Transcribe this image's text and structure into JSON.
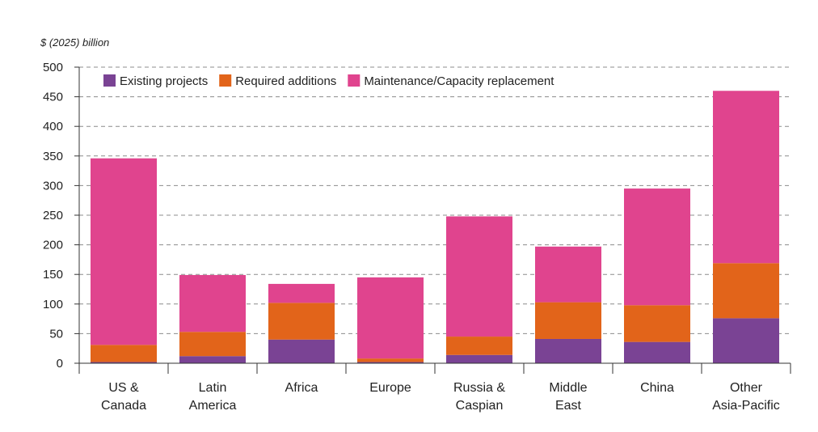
{
  "chart_data": {
    "type": "bar",
    "stacked": true,
    "ylabel": "$ (2025) billion",
    "ylim": [
      0,
      500
    ],
    "yticks": [
      0,
      50,
      100,
      150,
      200,
      250,
      300,
      350,
      400,
      450,
      500
    ],
    "grid": true,
    "legend_position": "top-left",
    "categories": [
      [
        "US &",
        "Canada"
      ],
      [
        "Latin",
        "America"
      ],
      [
        "Africa"
      ],
      [
        "Europe"
      ],
      [
        "Russia &",
        "Caspian"
      ],
      [
        "Middle",
        "East"
      ],
      [
        "China"
      ],
      [
        "Other",
        "Asia-Pacific"
      ]
    ],
    "series": [
      {
        "name": "Existing projects",
        "color": "#7a4394",
        "values": [
          2,
          12,
          40,
          2,
          14,
          41,
          36,
          76
        ]
      },
      {
        "name": "Required additions",
        "color": "#e2641a",
        "values": [
          29,
          41,
          62,
          6,
          31,
          62,
          62,
          93
        ]
      },
      {
        "name": "Maintenance/Capacity replacement",
        "color": "#e0448e",
        "values": [
          315,
          96,
          32,
          137,
          203,
          94,
          197,
          291
        ]
      }
    ]
  }
}
